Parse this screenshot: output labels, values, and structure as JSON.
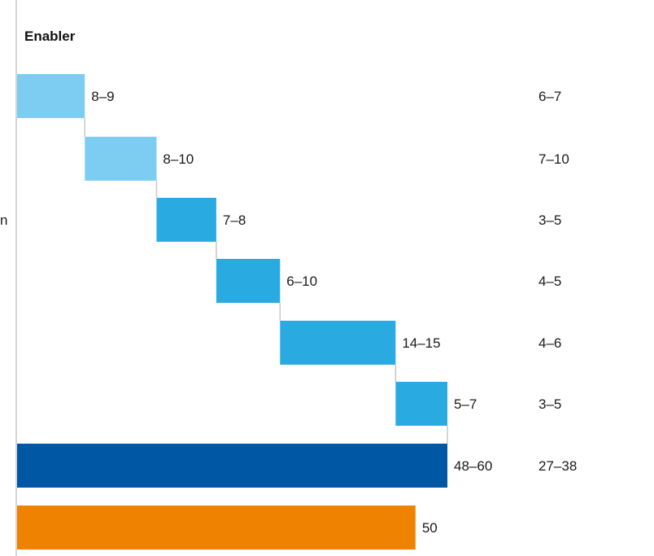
{
  "chart_data": {
    "type": "bar",
    "subtype": "waterfall",
    "header": "Enabler",
    "left_partial_labels": [
      "",
      "",
      "n",
      "",
      "",
      "",
      "",
      ""
    ],
    "rows": [
      {
        "start": 0,
        "end": 8.5,
        "label": "8–9",
        "right": "6–7",
        "color": "#7dcdf2"
      },
      {
        "start": 8.5,
        "end": 17.5,
        "label": "8–10",
        "right": "7–10",
        "color": "#7dcdf2"
      },
      {
        "start": 17.5,
        "end": 25,
        "label": "7–8",
        "right": "3–5",
        "color": "#29abe2"
      },
      {
        "start": 25,
        "end": 33,
        "label": "6–10",
        "right": "4–5",
        "color": "#29abe2"
      },
      {
        "start": 33,
        "end": 47.5,
        "label": "14–15",
        "right": "4–6",
        "color": "#29abe2"
      },
      {
        "start": 47.5,
        "end": 54,
        "label": "5–7",
        "right": "3–5",
        "color": "#29abe2"
      },
      {
        "start": 0,
        "end": 54,
        "label": "48–60",
        "right": "27–38",
        "color": "#0057a3"
      },
      {
        "start": 0,
        "end": 50,
        "label": "50",
        "right": "",
        "color": "#ef8200"
      }
    ],
    "xlim": [
      0,
      54
    ],
    "grid": false,
    "legend": "none"
  }
}
